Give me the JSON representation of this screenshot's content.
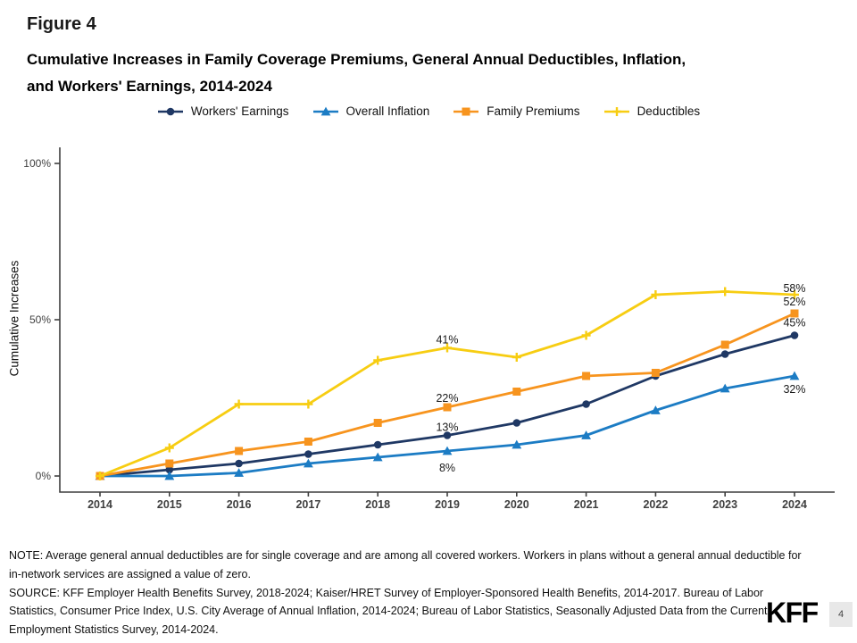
{
  "figure_label": "Figure 4",
  "title_line1": "Cumulative Increases in Family Coverage Premiums, General Annual Deductibles, Inflation,",
  "title_line2": "and Workers' Earnings, 2014-2024",
  "note_text": "NOTE: Average general annual deductibles are for single coverage and are among all covered workers. Workers in plans without a general annual deductible for in-network services are assigned a value of zero.",
  "source_text": "SOURCE: KFF Employer Health Benefits Survey, 2018-2024; Kaiser/HRET Survey of Employer-Sponsored Health Benefits, 2014-2017. Bureau of Labor Statistics, Consumer Price Index, U.S. City Average of Annual Inflation, 2014-2024; Bureau of Labor Statistics, Seasonally Adjusted Data from the Current Employment Statistics Survey, 2014-2024.",
  "logo_text": "KFF",
  "page_number": "4",
  "colors": {
    "workers_earnings": "#1F3864",
    "overall_inflation": "#1C7CC4",
    "family_premiums": "#F7941E",
    "deductibles": "#F7CD12",
    "axis": "#3f3f3f"
  },
  "chart_data": {
    "type": "line",
    "title": "Cumulative Increases in Family Coverage Premiums, General Annual Deductibles, Inflation, and Workers' Earnings, 2014-2024",
    "xlabel": "",
    "ylabel": "Cumulative Increases",
    "ylim": [
      0,
      100
    ],
    "grid": false,
    "legend_position": "top",
    "categories": [
      "2014",
      "2015",
      "2016",
      "2017",
      "2018",
      "2019",
      "2020",
      "2021",
      "2022",
      "2023",
      "2024"
    ],
    "y_ticks": {
      "labels": [
        "0%",
        "50%",
        "100%"
      ],
      "values": [
        0,
        50,
        100
      ]
    },
    "series": [
      {
        "name": "Workers' Earnings",
        "marker": "circle",
        "color": "#1F3864",
        "values": [
          0,
          2,
          4,
          7,
          10,
          13,
          17,
          23,
          32,
          39,
          45
        ]
      },
      {
        "name": "Overall Inflation",
        "marker": "triangle",
        "color": "#1C7CC4",
        "values": [
          0,
          0,
          1,
          4,
          6,
          8,
          10,
          13,
          21,
          28,
          32
        ]
      },
      {
        "name": "Family Premiums",
        "marker": "square",
        "color": "#F7941E",
        "values": [
          0,
          4,
          8,
          11,
          17,
          22,
          27,
          32,
          33,
          42,
          52
        ]
      },
      {
        "name": "Deductibles",
        "marker": "plus",
        "color": "#F7CD12",
        "values": [
          0,
          9,
          23,
          23,
          37,
          41,
          38,
          45,
          58,
          59,
          58
        ]
      }
    ],
    "annotations": [
      {
        "text": "41%",
        "year_index": 5,
        "value": 41,
        "dy": -9
      },
      {
        "text": "22%",
        "year_index": 5,
        "value": 22,
        "dy": -10
      },
      {
        "text": "13%",
        "year_index": 5,
        "value": 13,
        "dy": -9
      },
      {
        "text": "8%",
        "year_index": 5,
        "value": 8,
        "dy": 19
      },
      {
        "text": "58%",
        "year_index": 10,
        "value": 58,
        "dy": -7
      },
      {
        "text": "52%",
        "year_index": 10,
        "value": 52,
        "dy": -13
      },
      {
        "text": "45%",
        "year_index": 10,
        "value": 45,
        "dy": -14
      },
      {
        "text": "32%",
        "year_index": 10,
        "value": 32,
        "dy": 15
      }
    ]
  }
}
